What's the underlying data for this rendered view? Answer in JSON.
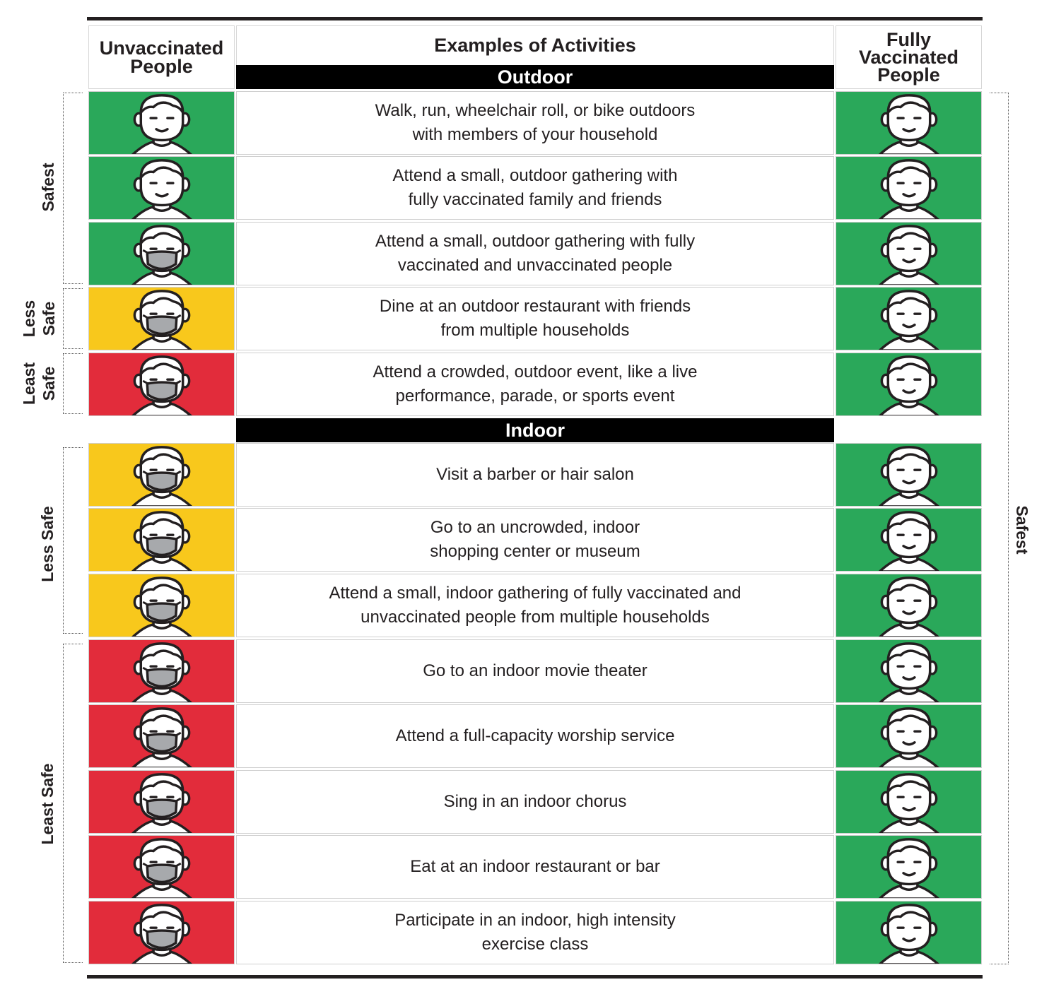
{
  "header": {
    "left": "Unvaccinated\nPeople",
    "middle": "Examples of Activities",
    "right": "Fully\nVaccinated\nPeople"
  },
  "sections": {
    "outdoor": "Outdoor",
    "indoor": "Indoor"
  },
  "colors": {
    "green": "#2aa85a",
    "yellow": "#f8c81c",
    "red": "#e22c3b",
    "mask": "#a7a9ac"
  },
  "rows": [
    {
      "text": "Walk, run, wheelchair roll, or bike outdoors\nwith members of your household",
      "unvaccinated": "green",
      "unvaccinated_mask": false,
      "vaccinated": "green"
    },
    {
      "text": "Attend a small, outdoor gathering with\nfully vaccinated family and friends",
      "unvaccinated": "green",
      "unvaccinated_mask": false,
      "vaccinated": "green"
    },
    {
      "text": "Attend a small, outdoor gathering with fully\nvaccinated and unvaccinated people",
      "unvaccinated": "green",
      "unvaccinated_mask": true,
      "vaccinated": "green"
    },
    {
      "text": "Dine at an outdoor restaurant with friends\nfrom multiple households",
      "unvaccinated": "yellow",
      "unvaccinated_mask": true,
      "vaccinated": "green"
    },
    {
      "text": "Attend a crowded, outdoor event, like a live\nperformance, parade, or sports event",
      "unvaccinated": "red",
      "unvaccinated_mask": true,
      "vaccinated": "green"
    },
    {
      "text": "Visit a barber or hair salon",
      "unvaccinated": "yellow",
      "unvaccinated_mask": true,
      "vaccinated": "green"
    },
    {
      "text": "Go to an uncrowded, indoor\nshopping center or museum",
      "unvaccinated": "yellow",
      "unvaccinated_mask": true,
      "vaccinated": "green"
    },
    {
      "text": "Attend a small, indoor gathering of fully vaccinated and\nunvaccinated people from multiple households",
      "unvaccinated": "yellow",
      "unvaccinated_mask": true,
      "vaccinated": "green"
    },
    {
      "text": "Go to an indoor movie theater",
      "unvaccinated": "red",
      "unvaccinated_mask": true,
      "vaccinated": "green"
    },
    {
      "text": "Attend a full-capacity worship service",
      "unvaccinated": "red",
      "unvaccinated_mask": true,
      "vaccinated": "green"
    },
    {
      "text": "Sing in an indoor chorus",
      "unvaccinated": "red",
      "unvaccinated_mask": true,
      "vaccinated": "green"
    },
    {
      "text": "Eat at an indoor restaurant or bar",
      "unvaccinated": "red",
      "unvaccinated_mask": true,
      "vaccinated": "green"
    },
    {
      "text": "Participate in an indoor, high intensity\nexercise class",
      "unvaccinated": "red",
      "unvaccinated_mask": true,
      "vaccinated": "green"
    }
  ],
  "side_labels": {
    "left_outdoor_safest": "Safest",
    "left_outdoor_less_safe": "Less\nSafe",
    "left_outdoor_least_safe": "Least\nSafe",
    "left_indoor_less_safe": "Less Safe",
    "left_indoor_least_safe": "Least Safe",
    "right_safest": "Safest"
  }
}
